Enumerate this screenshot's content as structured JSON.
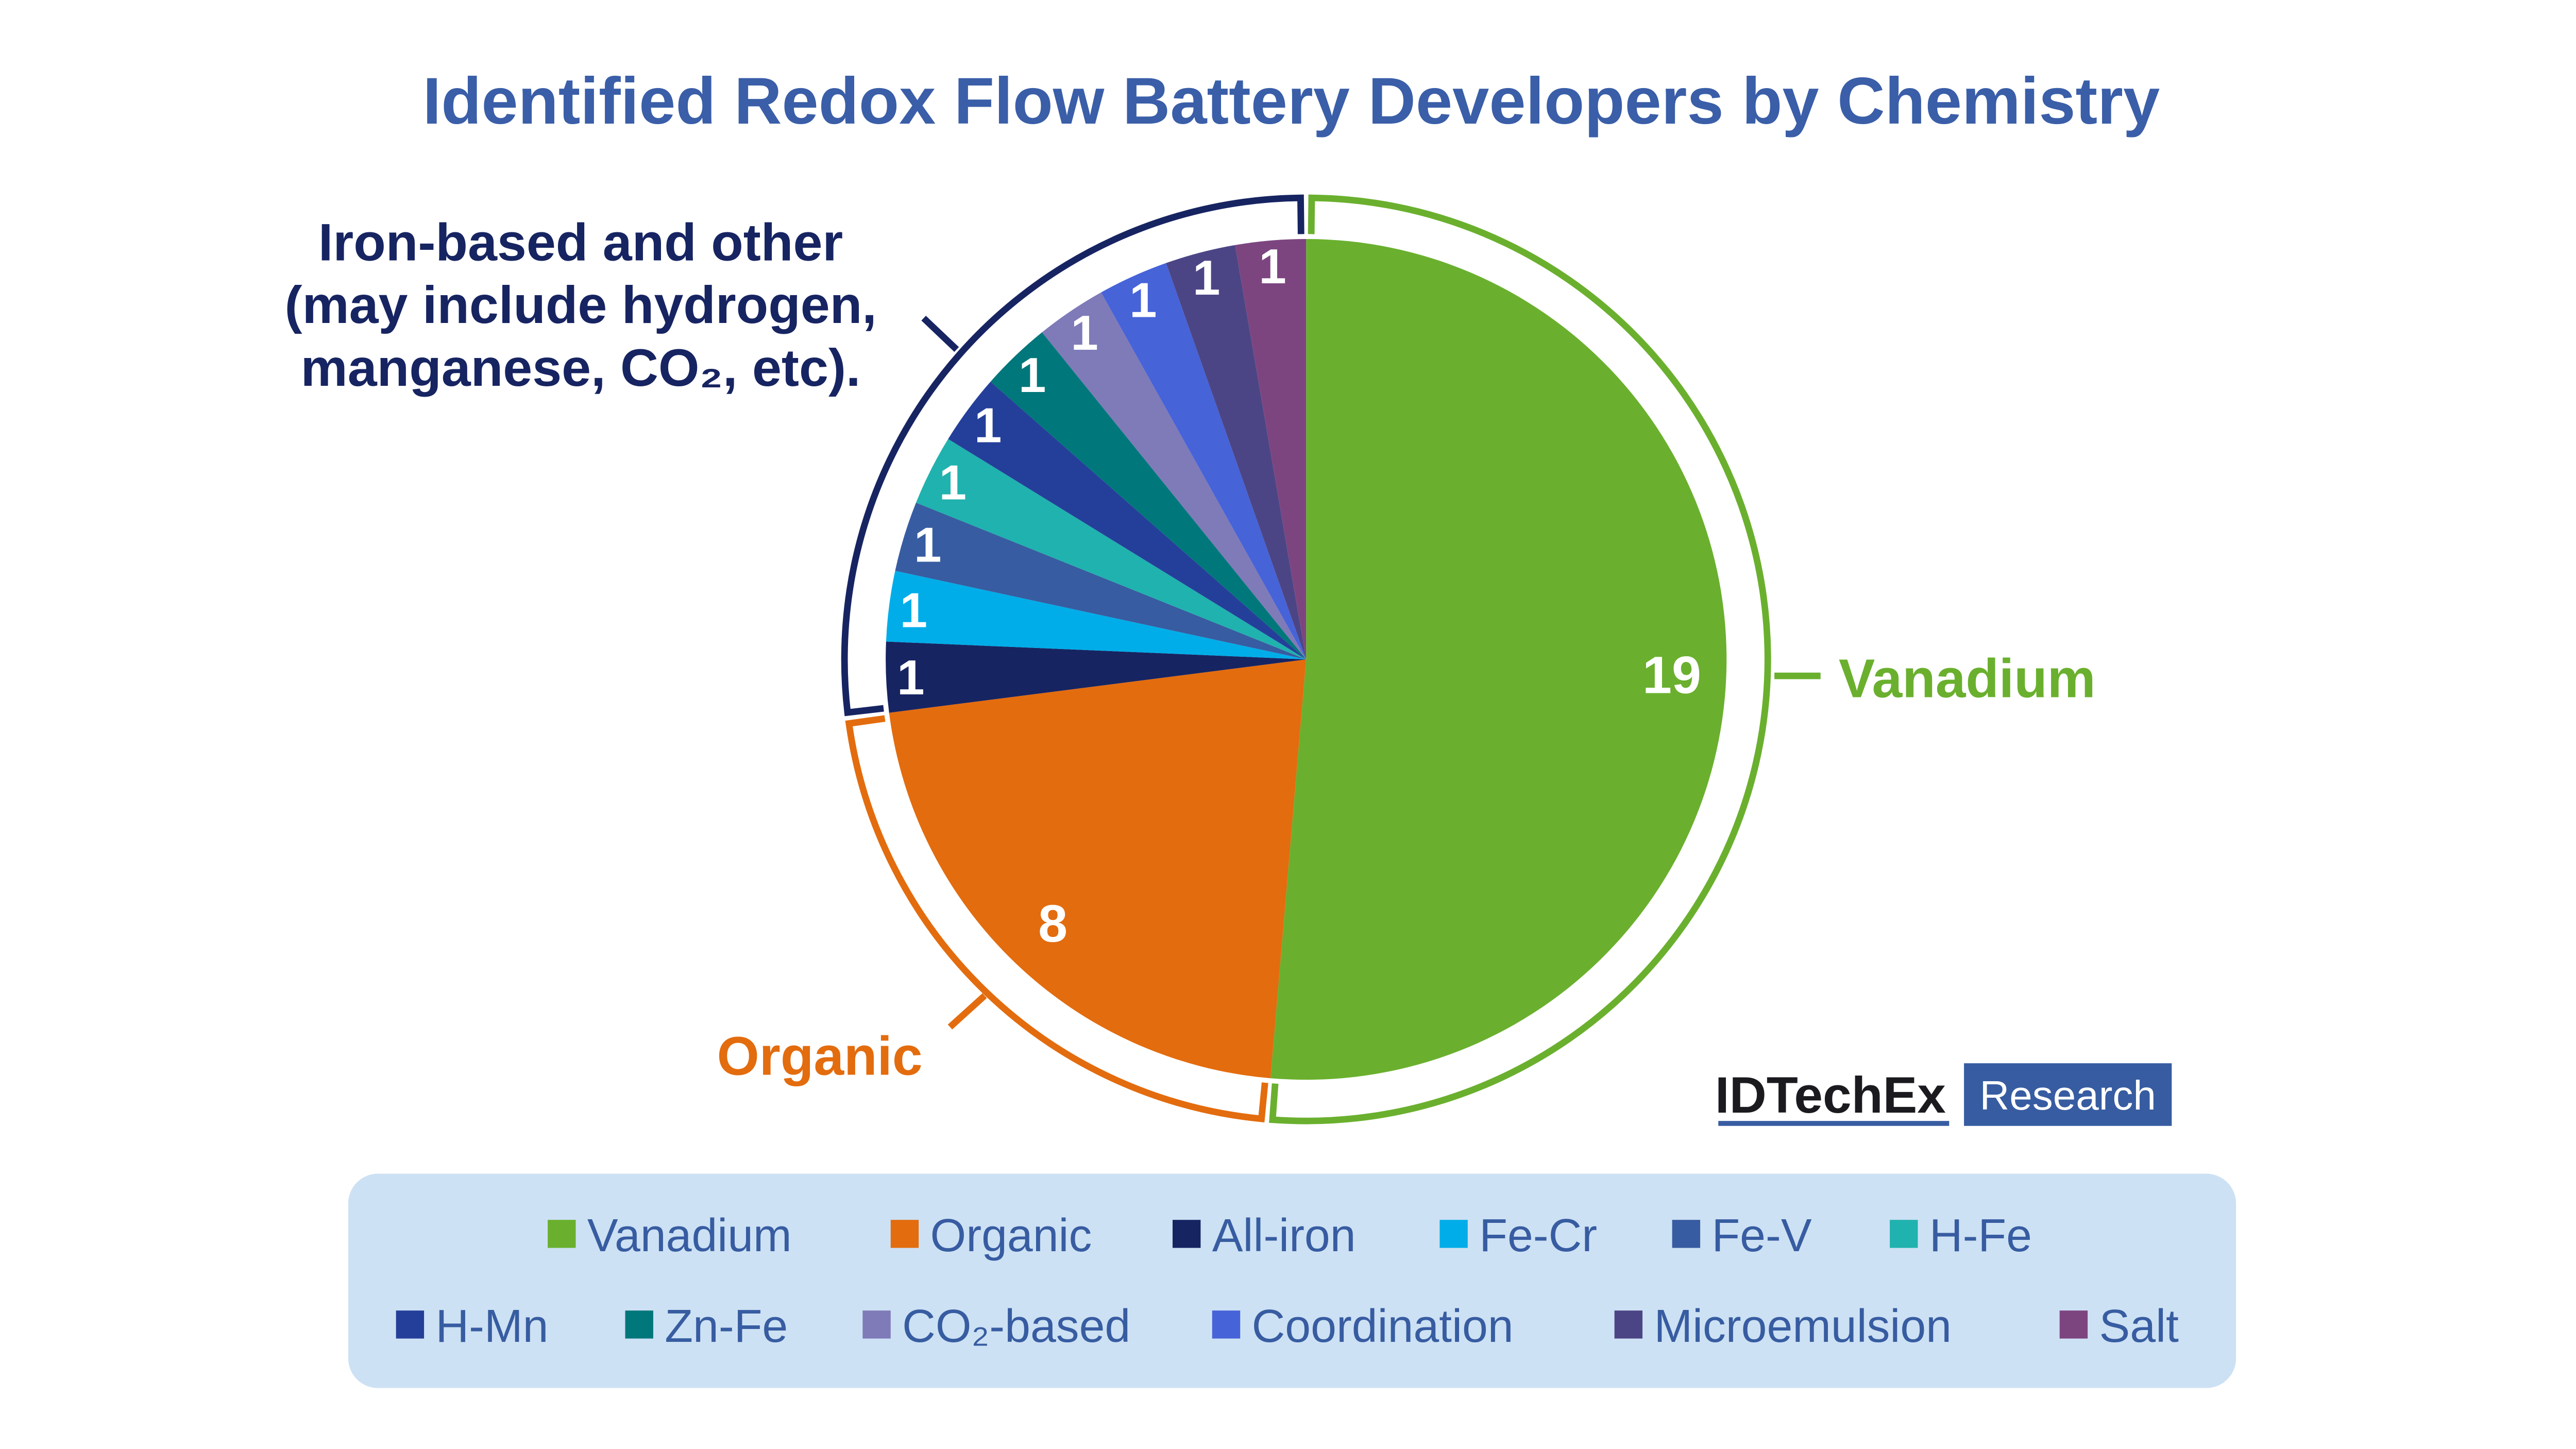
{
  "chart_data": {
    "type": "pie",
    "title": "Identified Redox Flow Battery Developers by Chemistry",
    "start_angle": "12 o'clock",
    "direction": "clockwise",
    "slices": [
      {
        "label": "Vanadium",
        "value": 19,
        "color": "#6ab02e"
      },
      {
        "label": "Organic",
        "value": 8,
        "color": "#e36c0e"
      },
      {
        "label": "All-iron",
        "value": 1,
        "color": "#172462"
      },
      {
        "label": "Fe-Cr",
        "value": 1,
        "color": "#00ade8"
      },
      {
        "label": "Fe-V",
        "value": 1,
        "color": "#375ca1"
      },
      {
        "label": "H-Fe",
        "value": 1,
        "color": "#20b2ae"
      },
      {
        "label": "H-Mn",
        "value": 1,
        "color": "#243f9a"
      },
      {
        "label": "Zn-Fe",
        "value": 1,
        "color": "#00777b"
      },
      {
        "label": "CO₂-based",
        "value": 1,
        "color": "#7f7ab8"
      },
      {
        "label": "Coordination",
        "value": 1,
        "color": "#4663d8"
      },
      {
        "label": "Microemulsion",
        "value": 1,
        "color": "#4c4585"
      },
      {
        "label": "Salt",
        "value": 1,
        "color": "#7d4580"
      }
    ],
    "group_annotations": [
      {
        "label": "Vanadium",
        "color": "#6ab02e"
      },
      {
        "label": "Organic",
        "color": "#e36c0e"
      },
      {
        "lines": [
          "Iron-based and other",
          "(may include hydrogen,",
          "manganese, CO₂, etc)."
        ],
        "color": "#172462"
      }
    ],
    "legend_placement": "bottom"
  },
  "colors": {
    "title": "#3a5ea8",
    "legend_bg": "#cde1f4",
    "legend_text": "#375ca1",
    "logo_blue": "#375ca1"
  },
  "logo": {
    "name": "IDTechEx",
    "tag": "Research"
  }
}
